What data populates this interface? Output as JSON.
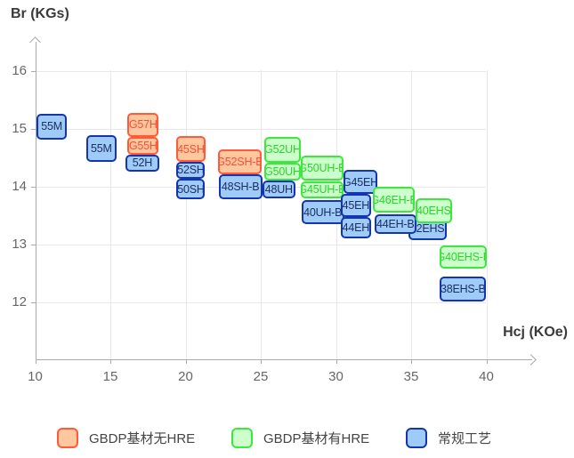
{
  "chart_data": {
    "type": "scatter",
    "subtype": "labeled-range-boxes",
    "xlabel": "Hcj (KOe)",
    "ylabel": "Br (KGs)",
    "x_ticks": [
      10,
      15,
      20,
      25,
      30,
      35,
      40
    ],
    "y_ticks": [
      16,
      15,
      14,
      13,
      12
    ],
    "xlim": [
      10,
      43
    ],
    "ylim": [
      11,
      16.5
    ],
    "grid": true,
    "legend_position": "bottom",
    "series_names": {
      "orange": "GBDP基材无HRE",
      "green": "GBDP基材有HRE",
      "blue": "常规工艺"
    },
    "boxes": [
      {
        "label": "52H",
        "series": "blue",
        "hcj": [
          16.0,
          18.25
        ],
        "br": [
          14.26,
          14.56
        ]
      },
      {
        "label": "G57H",
        "series": "orange",
        "hcj": [
          16.15,
          18.2
        ],
        "br": [
          14.86,
          15.28
        ]
      },
      {
        "label": "G55H",
        "series": "orange",
        "hcj": [
          16.15,
          18.2
        ],
        "br": [
          14.56,
          14.86
        ]
      },
      {
        "label": "55M",
        "series": "blue",
        "hcj": [
          10.1,
          12.1
        ],
        "br": [
          14.82,
          15.26
        ]
      },
      {
        "label": "55M",
        "series": "blue",
        "hcj": [
          13.4,
          15.4
        ],
        "br": [
          14.43,
          14.9
        ]
      },
      {
        "label": "50SH",
        "series": "blue",
        "hcj": [
          19.4,
          21.3
        ],
        "br": [
          13.78,
          14.14
        ]
      },
      {
        "label": "52SH",
        "series": "blue",
        "hcj": [
          19.4,
          21.3
        ],
        "br": [
          14.14,
          14.43
        ]
      },
      {
        "label": "45SH",
        "series": "orange",
        "hcj": [
          19.35,
          21.35
        ],
        "br": [
          14.43,
          14.87
        ]
      },
      {
        "label": "48SH-B",
        "series": "blue",
        "hcj": [
          22.2,
          25.1
        ],
        "br": [
          13.78,
          14.21
        ]
      },
      {
        "label": "G52SH-B",
        "series": "orange",
        "hcj": [
          22.15,
          25.05
        ],
        "br": [
          14.21,
          14.64
        ]
      },
      {
        "label": "48UH",
        "series": "blue",
        "hcj": [
          25.1,
          27.3
        ],
        "br": [
          13.8,
          14.11
        ]
      },
      {
        "label": "G50UH",
        "series": "green",
        "hcj": [
          25.25,
          27.65
        ],
        "br": [
          14.11,
          14.42
        ]
      },
      {
        "label": "G52UH",
        "series": "green",
        "hcj": [
          25.25,
          27.65
        ],
        "br": [
          14.42,
          14.86
        ]
      },
      {
        "label": "G45UH-B",
        "series": "green",
        "hcj": [
          27.65,
          30.5
        ],
        "br": [
          13.8,
          14.1
        ]
      },
      {
        "label": "G50UH-B",
        "series": "green",
        "hcj": [
          27.65,
          30.5
        ],
        "br": [
          14.1,
          14.54
        ]
      },
      {
        "label": "40UH-B",
        "series": "blue",
        "hcj": [
          27.7,
          30.55
        ],
        "br": [
          13.35,
          13.77
        ]
      },
      {
        "label": "G45EH",
        "series": "blue",
        "hcj": [
          30.5,
          32.75
        ],
        "br": [
          13.87,
          14.29
        ]
      },
      {
        "label": "45EH",
        "series": "blue",
        "hcj": [
          30.3,
          32.35
        ],
        "br": [
          13.47,
          13.87
        ]
      },
      {
        "label": "44EH",
        "series": "blue",
        "hcj": [
          30.3,
          32.35
        ],
        "br": [
          13.1,
          13.47
        ]
      },
      {
        "label": "42EHS",
        "series": "blue",
        "hcj": [
          34.8,
          37.35
        ],
        "br": [
          13.08,
          13.46
        ]
      },
      {
        "label": "44EH-B",
        "series": "blue",
        "hcj": [
          32.55,
          35.35
        ],
        "br": [
          13.18,
          13.52
        ]
      },
      {
        "label": "G46EH-B",
        "series": "green",
        "hcj": [
          32.45,
          35.25
        ],
        "br": [
          13.55,
          14.0
        ]
      },
      {
        "label": "40EHS",
        "series": "green",
        "hcj": [
          35.3,
          37.7
        ],
        "br": [
          13.37,
          13.8
        ]
      },
      {
        "label": "G40EHS-B",
        "series": "green",
        "hcj": [
          36.9,
          40.05
        ],
        "br": [
          12.59,
          12.98
        ]
      },
      {
        "label": "38EHS-B",
        "series": "blue",
        "hcj": [
          36.9,
          40.0
        ],
        "br": [
          12.01,
          12.45
        ]
      }
    ]
  },
  "legend": {
    "items": [
      {
        "label": "GBDP基材无HRE",
        "series": "orange"
      },
      {
        "label": "GBDP基材有HRE",
        "series": "green"
      },
      {
        "label": "常规工艺",
        "series": "blue"
      }
    ]
  },
  "colors": {
    "orange": {
      "fill": "#FFC79E",
      "border": "#FF5B3B",
      "text": "#FF4B33"
    },
    "green": {
      "fill": "#CDFFCC",
      "border": "#3CE83C",
      "text": "#29D429"
    },
    "blue": {
      "fill": "#9FCBF8",
      "border": "#1434B0",
      "text": "#1D2E63"
    },
    "grid": "#E8E8E8",
    "axis": "#AAAAAA",
    "tick_text": "#666666",
    "title_text": "#3A3A3A",
    "legend_text": "#444444"
  }
}
